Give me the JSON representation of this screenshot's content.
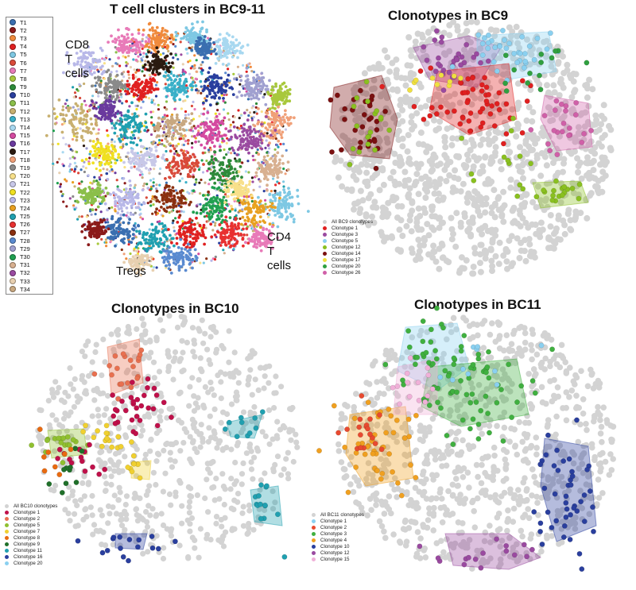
{
  "chart_data": [
    {
      "type": "scatter",
      "title": "T cell clusters in BC9-11",
      "annotations": [
        "CD8",
        "T cells",
        "CD4",
        "T cells",
        "Tregs"
      ],
      "legend": {
        "placement": "left",
        "entries": [
          {
            "name": "T1",
            "color": "#3a6fb0"
          },
          {
            "name": "T2",
            "color": "#8b1a1a"
          },
          {
            "name": "T3",
            "color": "#f08a3c"
          },
          {
            "name": "T4",
            "color": "#e02020"
          },
          {
            "name": "T5",
            "color": "#7ec8e3"
          },
          {
            "name": "T6",
            "color": "#d94a3a"
          },
          {
            "name": "T7",
            "color": "#e87ab8"
          },
          {
            "name": "T8",
            "color": "#a8c83c"
          },
          {
            "name": "T9",
            "color": "#2e8b3a"
          },
          {
            "name": "T10",
            "color": "#2a3f9e"
          },
          {
            "name": "T11",
            "color": "#8bbf4a"
          },
          {
            "name": "T12",
            "color": "#c8b070"
          },
          {
            "name": "T13",
            "color": "#3ab0c8"
          },
          {
            "name": "T14",
            "color": "#a8d8f0"
          },
          {
            "name": "T15",
            "color": "#d44aa0"
          },
          {
            "name": "T16",
            "color": "#6a3a9e"
          },
          {
            "name": "T17",
            "color": "#2a1a10"
          },
          {
            "name": "T18",
            "color": "#f0a078"
          },
          {
            "name": "T19",
            "color": "#8a8a8a"
          },
          {
            "name": "T20",
            "color": "#f8e08a"
          },
          {
            "name": "T21",
            "color": "#c8c8e8"
          },
          {
            "name": "T22",
            "color": "#f0e020"
          },
          {
            "name": "T23",
            "color": "#b8b8e8"
          },
          {
            "name": "T24",
            "color": "#e8a020"
          },
          {
            "name": "T25",
            "color": "#20a0b0"
          },
          {
            "name": "T26",
            "color": "#e83030"
          },
          {
            "name": "T27",
            "color": "#8a3010"
          },
          {
            "name": "T28",
            "color": "#5a8ad0"
          },
          {
            "name": "T29",
            "color": "#a0a0d0"
          },
          {
            "name": "T30",
            "color": "#20a050"
          },
          {
            "name": "T31",
            "color": "#d8b090"
          },
          {
            "name": "T32",
            "color": "#9a4aa0"
          },
          {
            "name": "T33",
            "color": "#e8d0b0"
          },
          {
            "name": "T34",
            "color": "#c8a880"
          }
        ]
      },
      "grid": false,
      "axes_visible": false
    },
    {
      "type": "scatter",
      "title": "Clonotypes in BC9",
      "background_color": "#d3d3d3",
      "legend": {
        "placement": "bottom-left",
        "entries": [
          {
            "name": "All BC9 clonotypes",
            "color": "#d3d3d3"
          },
          {
            "name": "Clonotype 1",
            "color": "#e02020"
          },
          {
            "name": "Clonotype 3",
            "color": "#9a4aa0"
          },
          {
            "name": "Clonotype 5",
            "color": "#8ad0f0"
          },
          {
            "name": "Clonotype 12",
            "color": "#8ac020"
          },
          {
            "name": "Clonotype 14",
            "color": "#7a1010"
          },
          {
            "name": "Clonotype 17",
            "color": "#f0e040"
          },
          {
            "name": "Clonotype 20",
            "color": "#30a040"
          },
          {
            "name": "Clonotype 26",
            "color": "#d060a8"
          }
        ]
      },
      "grid": false,
      "axes_visible": false
    },
    {
      "type": "scatter",
      "title": "Clonotypes in BC10",
      "background_color": "#d3d3d3",
      "legend": {
        "placement": "bottom-left",
        "entries": [
          {
            "name": "All BC10 clonotypes",
            "color": "#d3d3d3"
          },
          {
            "name": "Clonotype 1",
            "color": "#c0104a"
          },
          {
            "name": "Clonotype 2",
            "color": "#e87050"
          },
          {
            "name": "Clonotype 5",
            "color": "#90c030"
          },
          {
            "name": "Clonotype 7",
            "color": "#f0d030"
          },
          {
            "name": "Clonotype 8",
            "color": "#e86a10"
          },
          {
            "name": "Clonotype 9",
            "color": "#20702a"
          },
          {
            "name": "Clonotype 11",
            "color": "#20a0b0"
          },
          {
            "name": "Clonotype 16",
            "color": "#2a3f9e"
          },
          {
            "name": "Clonotype 20",
            "color": "#8ad0f0"
          }
        ]
      },
      "grid": false,
      "axes_visible": false
    },
    {
      "type": "scatter",
      "title": "Clonotypes in BC11",
      "background_color": "#d3d3d3",
      "legend": {
        "placement": "bottom-left",
        "entries": [
          {
            "name": "All BC11 clonotypes",
            "color": "#d3d3d3"
          },
          {
            "name": "Clonotype 1",
            "color": "#8ad0f0"
          },
          {
            "name": "Clonotype 2",
            "color": "#e84a30"
          },
          {
            "name": "Clonotype 3",
            "color": "#40b040"
          },
          {
            "name": "Clonotype 4",
            "color": "#f0a020"
          },
          {
            "name": "Clonotype 10",
            "color": "#2a3f9e"
          },
          {
            "name": "Clonotype 12",
            "color": "#9a4aa0"
          },
          {
            "name": "Clonotype 15",
            "color": "#f0b0d8"
          }
        ]
      },
      "grid": false,
      "axes_visible": false
    }
  ]
}
